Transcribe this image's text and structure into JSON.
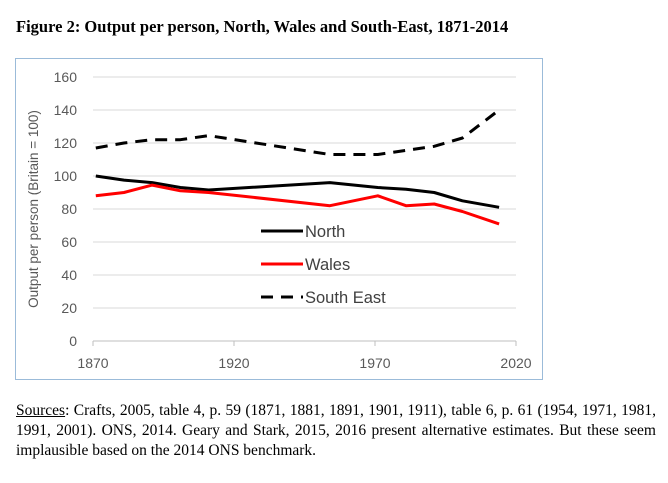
{
  "figure": {
    "title": "Figure 2:  Output per person, North, Wales and South-East, 1871-2014"
  },
  "sources": {
    "label": "Sources",
    "text": ":  Crafts, 2005, table 4, p. 59 (1871, 1881, 1891, 1901, 1911), table 6, p. 61 (1954, 1971, 1981, 1991, 2001).  ONS, 2014.  Geary and Stark, 2015, 2016 present alternative estimates. But these seem implausible based on the 2014 ONS benchmark."
  },
  "chart_data": {
    "type": "line",
    "title": "",
    "xlabel": "",
    "ylabel": "Output per person (Britain = 100)",
    "xlim": [
      1870,
      2020
    ],
    "ylim": [
      0,
      160
    ],
    "xticks": [
      1870,
      1920,
      1970,
      2020
    ],
    "yticks": [
      0,
      20,
      40,
      60,
      80,
      100,
      120,
      140,
      160
    ],
    "grid": "horizontal",
    "legend_position": "center",
    "series": [
      {
        "name": "North",
        "color": "#000000",
        "dash": "solid",
        "points": [
          [
            1871,
            100
          ],
          [
            1881,
            97.5
          ],
          [
            1891,
            96
          ],
          [
            1901,
            93
          ],
          [
            1911,
            91.5
          ],
          [
            1954,
            96
          ],
          [
            1971,
            93
          ],
          [
            1981,
            92
          ],
          [
            1991,
            90
          ],
          [
            2001,
            85
          ],
          [
            2014,
            81
          ]
        ]
      },
      {
        "name": "Wales",
        "color": "#ff0000",
        "dash": "solid",
        "points": [
          [
            1871,
            88
          ],
          [
            1881,
            90
          ],
          [
            1891,
            94.5
          ],
          [
            1901,
            91
          ],
          [
            1911,
            90
          ],
          [
            1954,
            82
          ],
          [
            1971,
            88
          ],
          [
            1981,
            82
          ],
          [
            1991,
            83
          ],
          [
            2001,
            78.5
          ],
          [
            2014,
            71
          ]
        ]
      },
      {
        "name": "South East",
        "color": "#000000",
        "dash": "dashed",
        "points": [
          [
            1871,
            117
          ],
          [
            1881,
            120
          ],
          [
            1891,
            122
          ],
          [
            1901,
            122
          ],
          [
            1911,
            124.5
          ],
          [
            1954,
            113
          ],
          [
            1971,
            113
          ],
          [
            1981,
            115.5
          ],
          [
            1991,
            118
          ],
          [
            2001,
            123
          ],
          [
            2014,
            140
          ]
        ]
      }
    ]
  }
}
